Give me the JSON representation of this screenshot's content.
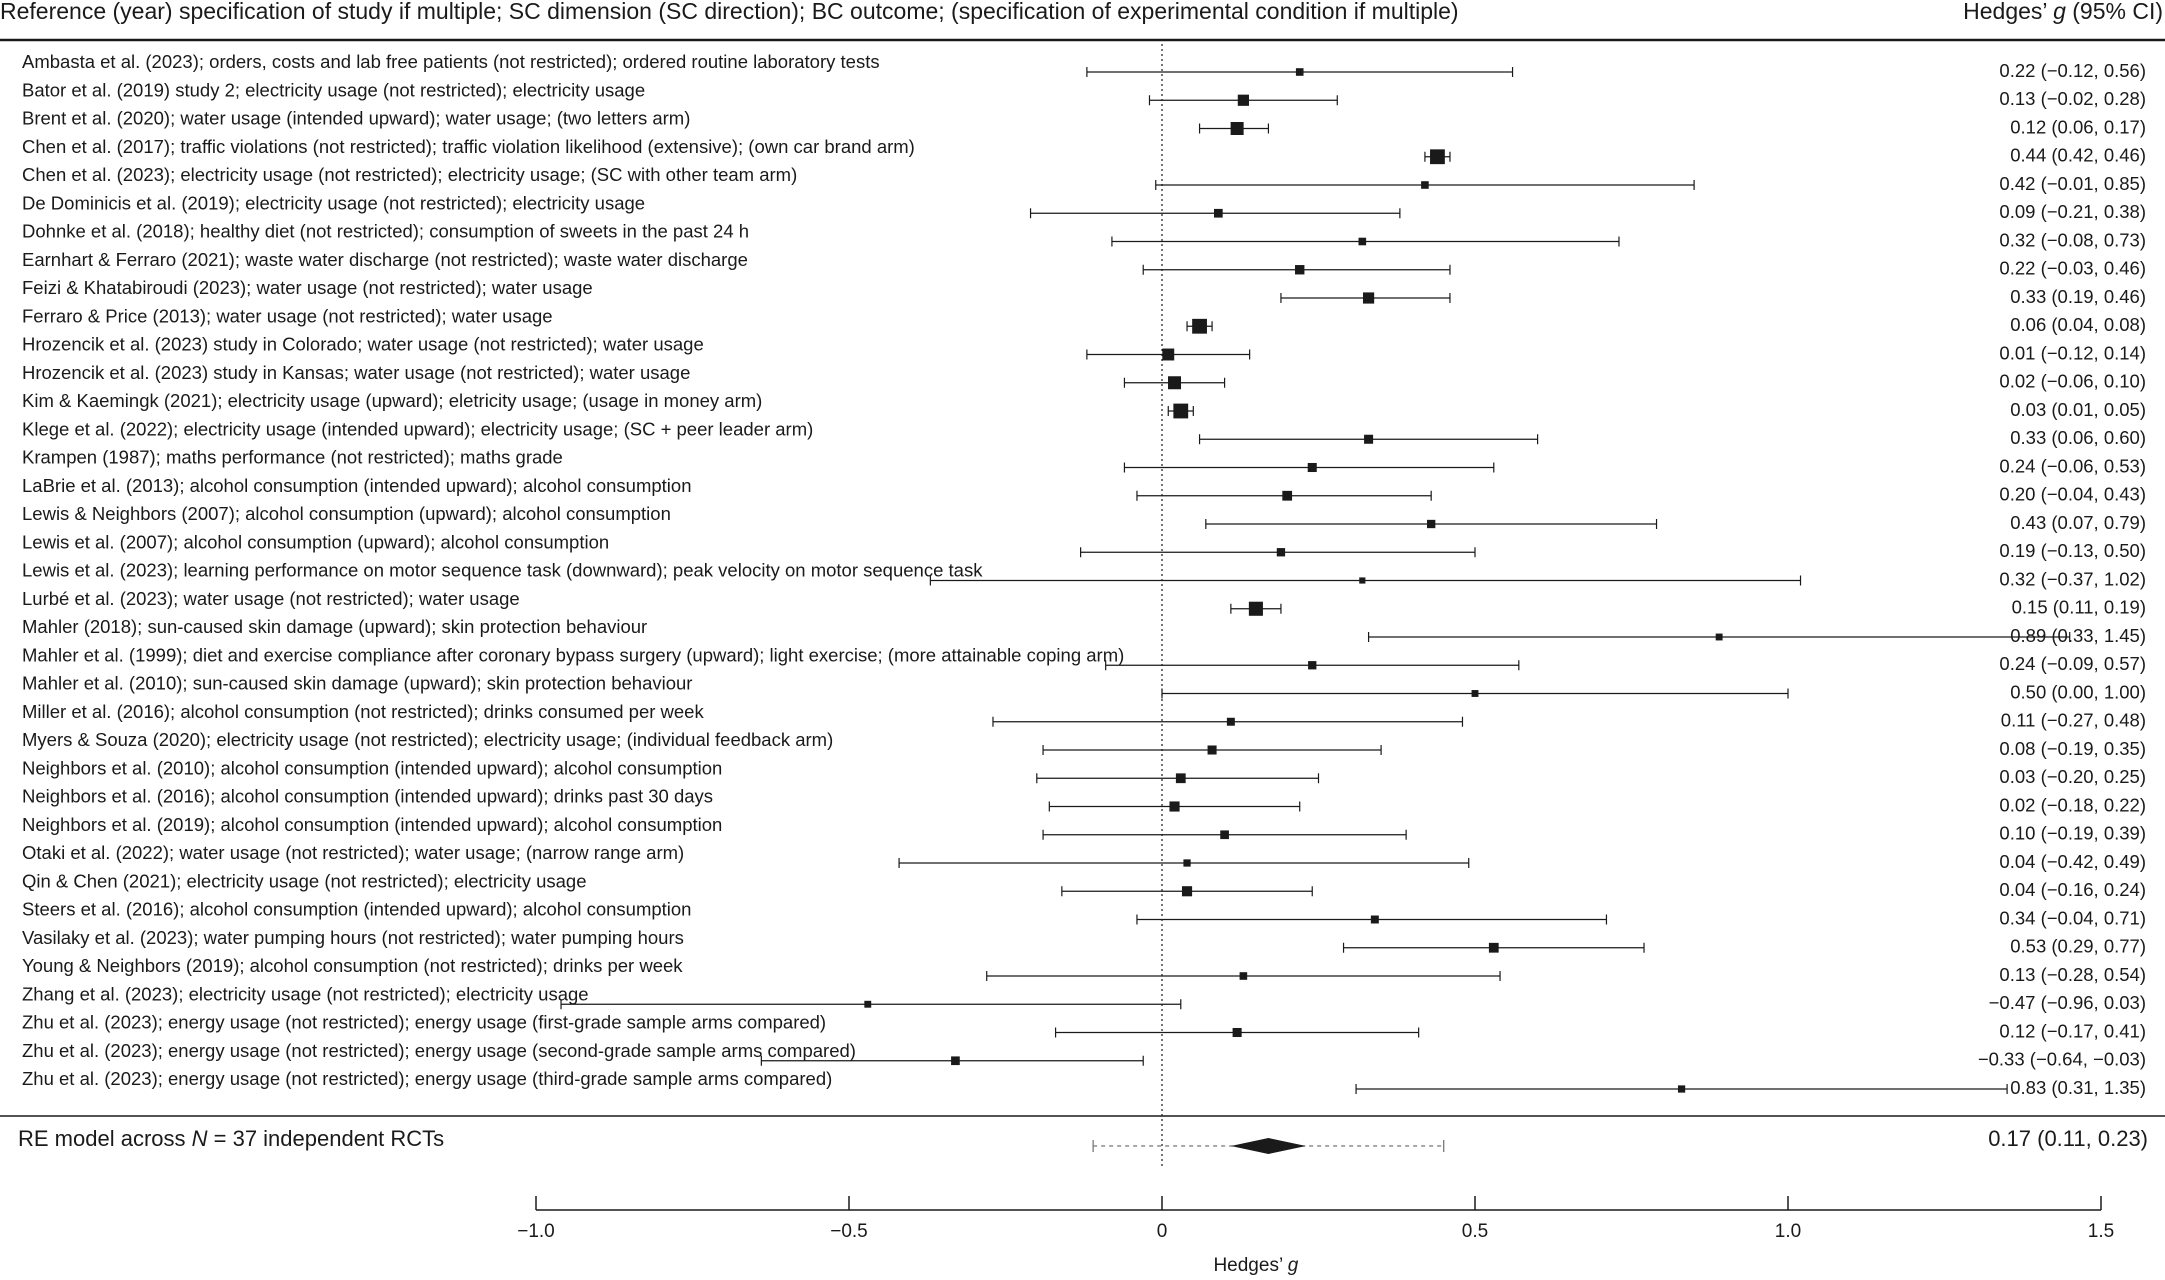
{
  "chart_data": {
    "type": "forest",
    "header": {
      "left": "Reference (year) specification of study if multiple; SC dimension (SC direction); BC outcome; (specification of experimental condition if multiple)",
      "right_prefix": "Hedges’ ",
      "right_italic": "g",
      "right_suffix": " (95% CI)"
    },
    "xlabel_prefix": "Hedges’ ",
    "xlabel_italic": "g",
    "xlim": [
      -1.0,
      1.5
    ],
    "xticks": [
      -1.0,
      -0.5,
      0,
      0.5,
      1.0,
      1.5
    ],
    "xtick_labels": [
      "−1.0",
      "−0.5",
      "0",
      "0.5",
      "1.0",
      "1.5"
    ],
    "reference_line": 0,
    "studies": [
      {
        "label": "Ambasta et al. (2023); orders, costs and lab free patients (not restricted); ordered routine laboratory tests",
        "g": 0.22,
        "lo": -0.12,
        "hi": 0.56,
        "ci_text": "0.22 (−0.12,  0.56)",
        "w": 1
      },
      {
        "label": "Bator et al. (2019) study 2; electricity usage (not restricted); electricity usage",
        "g": 0.13,
        "lo": -0.02,
        "hi": 0.28,
        "ci_text": "0.13 (−0.02,  0.28)",
        "w": 2
      },
      {
        "label": "Brent et al. (2020); water usage (intended upward); water usage; (two letters arm)",
        "g": 0.12,
        "lo": 0.06,
        "hi": 0.17,
        "ci_text": "0.12 (0.06,  0.17)",
        "w": 2.5
      },
      {
        "label": "Chen et al. (2017); traffic violations (not restricted); traffic violation likelihood (extensive); (own car brand arm)",
        "g": 0.44,
        "lo": 0.42,
        "hi": 0.46,
        "ci_text": "0.44 (0.42,  0.46)",
        "w": 3
      },
      {
        "label": "Chen et al. (2023); electricity usage (not restricted); electricity usage; (SC with other team arm)",
        "g": 0.42,
        "lo": -0.01,
        "hi": 0.85,
        "ci_text": "0.42 (−0.01,  0.85)",
        "w": 1
      },
      {
        "label": "De Dominicis et al. (2019); electricity usage (not restricted); electricity usage",
        "g": 0.09,
        "lo": -0.21,
        "hi": 0.38,
        "ci_text": "0.09 (−0.21,  0.38)",
        "w": 1.3
      },
      {
        "label": "Dohnke et al. (2018); healthy diet (not restricted); consumption of sweets in the past 24 h",
        "g": 0.32,
        "lo": -0.08,
        "hi": 0.73,
        "ci_text": "0.32 (−0.08,  0.73)",
        "w": 1
      },
      {
        "label": "Earnhart & Ferraro (2021); waste water discharge (not restricted); waste water discharge",
        "g": 0.22,
        "lo": -0.03,
        "hi": 0.46,
        "ci_text": "0.22 (−0.03,  0.46)",
        "w": 1.5
      },
      {
        "label": "Feizi & Khatabiroudi (2023); water usage (not restricted); water usage",
        "g": 0.33,
        "lo": 0.19,
        "hi": 0.46,
        "ci_text": "0.33 (0.19,  0.46)",
        "w": 2
      },
      {
        "label": "Ferraro & Price (2013); water usage (not restricted); water usage",
        "g": 0.06,
        "lo": 0.04,
        "hi": 0.08,
        "ci_text": "0.06 (0.04,  0.08)",
        "w": 3
      },
      {
        "label": "Hrozencik et al. (2023) study in Colorado; water usage (not restricted); water usage",
        "g": 0.01,
        "lo": -0.12,
        "hi": 0.14,
        "ci_text": "0.01 (−0.12,  0.14)",
        "w": 2.2
      },
      {
        "label": "Hrozencik et al. (2023) study in Kansas; water usage (not restricted); water usage",
        "g": 0.02,
        "lo": -0.06,
        "hi": 0.1,
        "ci_text": "0.02 (−0.06,  0.10)",
        "w": 2.5
      },
      {
        "label": "Kim & Kaemingk (2021); electricity usage (upward); eletricity usage; (usage in money arm)",
        "g": 0.03,
        "lo": 0.01,
        "hi": 0.05,
        "ci_text": "0.03 (0.01,  0.05)",
        "w": 3
      },
      {
        "label": "Klege et al. (2022); electricity usage (intended upward); electricity usage; (SC + peer leader arm)",
        "g": 0.33,
        "lo": 0.06,
        "hi": 0.6,
        "ci_text": "0.33 (0.06,  0.60)",
        "w": 1.4
      },
      {
        "label": "Krampen (1987); maths performance (not restricted); maths grade",
        "g": 0.24,
        "lo": -0.06,
        "hi": 0.53,
        "ci_text": "0.24 (−0.06,  0.53)",
        "w": 1.4
      },
      {
        "label": "LaBrie et al. (2013); alcohol consumption (intended upward); alcohol consumption",
        "g": 0.2,
        "lo": -0.04,
        "hi": 0.43,
        "ci_text": "0.20 (−0.04,  0.43)",
        "w": 1.6
      },
      {
        "label": "Lewis & Neighbors (2007); alcohol consumption (upward); alcohol consumption",
        "g": 0.43,
        "lo": 0.07,
        "hi": 0.79,
        "ci_text": "0.43 (0.07,  0.79)",
        "w": 1.2
      },
      {
        "label": "Lewis et al. (2007); alcohol consumption (upward); alcohol consumption",
        "g": 0.19,
        "lo": -0.13,
        "hi": 0.5,
        "ci_text": "0.19 (−0.13,  0.50)",
        "w": 1.2
      },
      {
        "label": "Lewis et al. (2023); learning performance on motor sequence task (downward); peak velocity on motor sequence task",
        "g": 0.32,
        "lo": -0.37,
        "hi": 1.02,
        "ci_text": "0.32 (−0.37,  1.02)",
        "w": 0.6
      },
      {
        "label": "Lurbé et al. (2023); water usage (not restricted); water usage",
        "g": 0.15,
        "lo": 0.11,
        "hi": 0.19,
        "ci_text": "0.15 (0.11,  0.19)",
        "w": 2.8
      },
      {
        "label": "Mahler (2018); sun-caused skin damage (upward); skin protection behaviour",
        "g": 0.89,
        "lo": 0.33,
        "hi": 1.45,
        "ci_text": "0.89 (0.33,  1.45)",
        "w": 0.8
      },
      {
        "label": "Mahler et al. (1999); diet and exercise compliance after coronary bypass surgery (upward); light exercise; (more attainable coping arm)",
        "g": 0.24,
        "lo": -0.09,
        "hi": 0.57,
        "ci_text": "0.24 (−0.09,  0.57)",
        "w": 1.2
      },
      {
        "label": "Mahler et al. (2010); sun-caused skin damage (upward); skin protection behaviour",
        "g": 0.5,
        "lo": 0.0,
        "hi": 1.0,
        "ci_text": "0.50 (0.00,  1.00)",
        "w": 0.8
      },
      {
        "label": "Miller et al. (2016); alcohol consumption (not restricted); drinks consumed per week",
        "g": 0.11,
        "lo": -0.27,
        "hi": 0.48,
        "ci_text": "0.11 (−0.27,  0.48)",
        "w": 1.1
      },
      {
        "label": "Myers & Souza (2020); electricity usage (not restricted); electricity usage; (individual feedback arm)",
        "g": 0.08,
        "lo": -0.19,
        "hi": 0.35,
        "ci_text": "0.08 (−0.19,  0.35)",
        "w": 1.4
      },
      {
        "label": "Neighbors et al. (2010); alcohol consumption (intended upward); alcohol consumption",
        "g": 0.03,
        "lo": -0.2,
        "hi": 0.25,
        "ci_text": "0.03 (−0.20,  0.25)",
        "w": 1.6
      },
      {
        "label": "Neighbors et al. (2016); alcohol consumption (intended upward); drinks past 30 days",
        "g": 0.02,
        "lo": -0.18,
        "hi": 0.22,
        "ci_text": "0.02 (−0.18,  0.22)",
        "w": 1.7
      },
      {
        "label": "Neighbors et al. (2019); alcohol consumption (intended upward); alcohol consumption",
        "g": 0.1,
        "lo": -0.19,
        "hi": 0.39,
        "ci_text": "0.10 (−0.19,  0.39)",
        "w": 1.3
      },
      {
        "label": "Otaki et al. (2022); water usage (not restricted); water usage; (narrow range arm)",
        "g": 0.04,
        "lo": -0.42,
        "hi": 0.49,
        "ci_text": "0.04 (−0.42,  0.49)",
        "w": 0.9
      },
      {
        "label": "Qin & Chen (2021); electricity usage (not restricted); electricity usage",
        "g": 0.04,
        "lo": -0.16,
        "hi": 0.24,
        "ci_text": "0.04 (−0.16,  0.24)",
        "w": 1.7
      },
      {
        "label": "Steers et al. (2016); alcohol consumption (intended upward); alcohol consumption",
        "g": 0.34,
        "lo": -0.04,
        "hi": 0.71,
        "ci_text": "0.34 (−0.04,  0.71)",
        "w": 1.1
      },
      {
        "label": "Vasilaky et al. (2023); water pumping hours (not restricted); water pumping hours",
        "g": 0.53,
        "lo": 0.29,
        "hi": 0.77,
        "ci_text": "0.53 (0.29,  0.77)",
        "w": 1.6
      },
      {
        "label": "Young & Neighbors (2019); alcohol consumption (not restricted); drinks per week",
        "g": 0.13,
        "lo": -0.28,
        "hi": 0.54,
        "ci_text": "0.13 (−0.28,  0.54)",
        "w": 1
      },
      {
        "label": "Zhang et al. (2023); electricity usage (not restricted); electricity usage",
        "g": -0.47,
        "lo": -0.96,
        "hi": 0.03,
        "ci_text": "−0.47 (−0.96,  0.03)",
        "w": 0.8
      },
      {
        "label": "Zhu et al. (2023); energy usage (not restricted); energy usage (first-grade sample arms compared)",
        "g": 0.12,
        "lo": -0.17,
        "hi": 0.41,
        "ci_text": "0.12 (−0.17,  0.41)",
        "w": 1.4
      },
      {
        "label": "Zhu et al. (2023); energy usage (not restricted); energy usage (second-grade sample arms compared)",
        "g": -0.33,
        "lo": -0.64,
        "hi": -0.03,
        "ci_text": "−0.33 (−0.64, −0.03)",
        "w": 1.3
      },
      {
        "label": "Zhu et al. (2023); energy usage (not restricted); energy usage (third-grade sample arms compared)",
        "g": 0.83,
        "lo": 0.31,
        "hi": 1.35,
        "ci_text": "0.83 (0.31,  1.35)",
        "w": 0.9
      }
    ],
    "summary": {
      "label_prefix": "RE model across ",
      "label_italic": "N",
      "label_suffix": " = 37 independent RCTs",
      "g": 0.17,
      "lo": 0.11,
      "hi": 0.23,
      "pi_lo": -0.11,
      "pi_hi": 0.45,
      "ci_text": "0.17 (0.11,  0.23)"
    }
  }
}
